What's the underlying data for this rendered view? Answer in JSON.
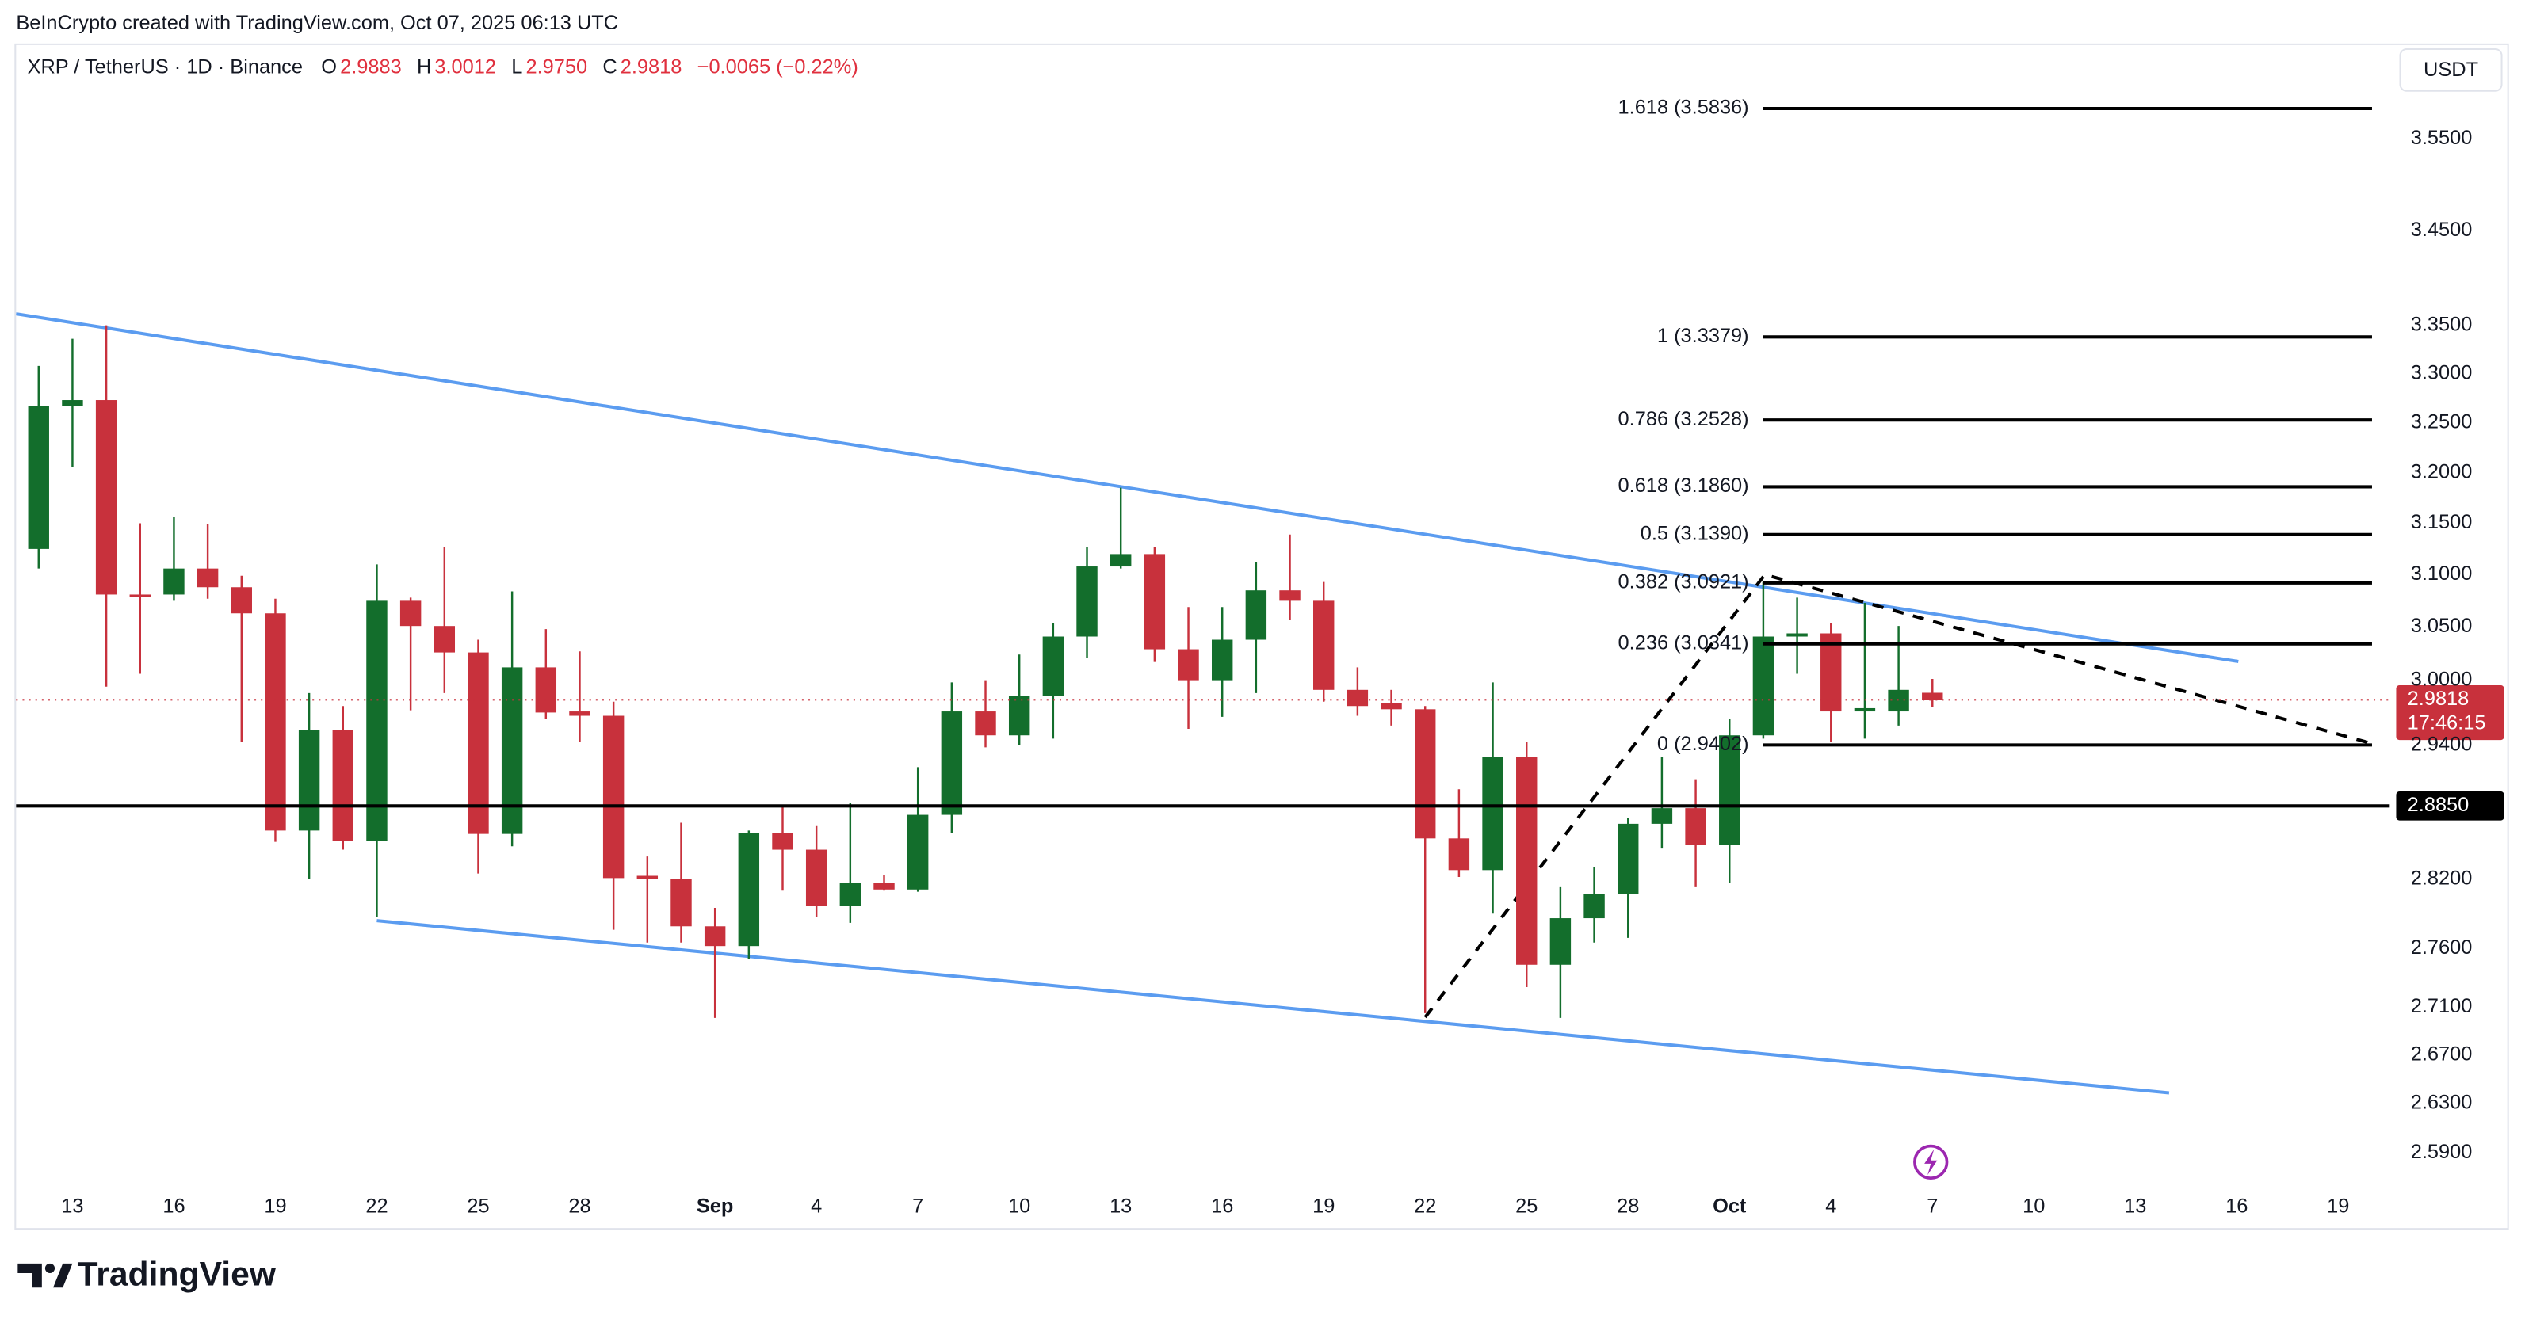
{
  "header": {
    "attribution": "BeInCrypto created with TradingView.com, Oct 07, 2025 06:13 UTC",
    "currency": "USDT",
    "logo": "TradingView"
  },
  "chart_data": {
    "type": "candlestick",
    "title": "XRP / TetherUS · 1D · Binance",
    "ohlc_legend": [
      {
        "label": "O",
        "value": "2.9883"
      },
      {
        "label": "H",
        "value": "3.0012"
      },
      {
        "label": "L",
        "value": "2.9750"
      },
      {
        "label": "C",
        "value": "2.9818"
      }
    ],
    "change": "−0.0065 (−0.22%)",
    "categories": [
      null,
      "13",
      null,
      null,
      "16",
      null,
      null,
      "19",
      null,
      null,
      "22",
      null,
      null,
      "25",
      null,
      null,
      "28",
      null,
      null,
      null,
      "Sep",
      null,
      null,
      "4",
      null,
      null,
      "7",
      null,
      null,
      "10",
      null,
      null,
      "13",
      null,
      null,
      "16",
      null,
      null,
      "19",
      null,
      null,
      "22",
      null,
      null,
      "25",
      null,
      null,
      "28",
      null,
      null,
      "Oct",
      null,
      null,
      "4",
      null,
      null,
      "7",
      null,
      null,
      "10",
      null,
      null,
      "13",
      null,
      null,
      "16",
      null,
      null,
      "19",
      null
    ],
    "open": [
      3.125,
      3.267,
      3.273,
      3.081,
      3.081,
      3.106,
      3.088,
      3.063,
      2.863,
      2.954,
      2.854,
      3.075,
      3.051,
      3.026,
      2.86,
      3.012,
      2.971,
      2.967,
      2.823,
      2.82,
      2.779,
      2.762,
      2.861,
      2.846,
      2.797,
      2.817,
      2.811,
      2.877,
      2.971,
      2.949,
      2.985,
      3.041,
      3.108,
      3.12,
      3.029,
      3.0,
      3.038,
      3.085,
      3.075,
      2.991,
      2.979,
      2.973,
      2.856,
      2.828,
      2.929,
      2.746,
      2.786,
      2.807,
      2.869,
      2.883,
      2.85,
      2.949,
      3.041,
      3.044,
      2.971,
      2.971,
      2.9883,
      null,
      null,
      null,
      null,
      null,
      null,
      null,
      null,
      null,
      null,
      null,
      null,
      null
    ],
    "high": [
      3.308,
      3.336,
      3.35,
      3.15,
      3.156,
      3.149,
      3.099,
      3.077,
      2.988,
      2.976,
      3.11,
      3.078,
      3.127,
      3.038,
      3.084,
      3.048,
      3.027,
      2.98,
      2.84,
      2.87,
      2.795,
      2.863,
      2.885,
      2.867,
      2.888,
      2.824,
      2.92,
      2.998,
      3.0,
      3.024,
      3.054,
      3.127,
      3.185,
      3.127,
      3.069,
      3.069,
      3.112,
      3.139,
      3.093,
      3.012,
      2.991,
      2.976,
      2.9,
      2.998,
      2.943,
      2.813,
      2.831,
      2.874,
      2.929,
      2.909,
      2.964,
      3.093,
      3.078,
      3.054,
      3.073,
      3.051,
      3.0012,
      null,
      null,
      null,
      null,
      null,
      null,
      null,
      null,
      null,
      null,
      null,
      null,
      null
    ],
    "low": [
      3.106,
      3.206,
      2.994,
      3.006,
      3.075,
      3.077,
      2.943,
      2.853,
      2.82,
      2.846,
      2.787,
      2.972,
      2.988,
      2.825,
      2.849,
      2.964,
      2.943,
      2.776,
      2.765,
      2.765,
      2.701,
      2.751,
      2.81,
      2.787,
      2.782,
      2.81,
      2.809,
      2.861,
      2.938,
      2.94,
      2.946,
      3.021,
      3.106,
      3.017,
      2.955,
      2.966,
      2.988,
      3.057,
      2.98,
      2.967,
      2.958,
      2.705,
      2.822,
      2.79,
      2.727,
      2.701,
      2.765,
      2.769,
      2.847,
      2.813,
      2.817,
      2.946,
      3.006,
      2.943,
      2.946,
      2.958,
      2.975,
      null,
      null,
      null,
      null,
      null,
      null,
      null,
      null,
      null,
      null,
      null,
      null,
      null
    ],
    "close": [
      3.267,
      3.273,
      3.081,
      3.079,
      3.106,
      3.088,
      3.063,
      2.863,
      2.954,
      2.854,
      3.075,
      3.051,
      3.026,
      2.86,
      3.012,
      2.97,
      2.967,
      2.821,
      2.82,
      2.779,
      2.762,
      2.861,
      2.846,
      2.797,
      2.817,
      2.811,
      2.877,
      2.971,
      2.949,
      2.985,
      3.041,
      3.108,
      3.12,
      3.029,
      3.0,
      3.038,
      3.085,
      3.075,
      2.991,
      2.976,
      2.973,
      2.856,
      2.828,
      2.929,
      2.746,
      2.786,
      2.807,
      2.869,
      2.883,
      2.85,
      2.949,
      3.041,
      3.044,
      2.971,
      2.974,
      2.991,
      2.9818,
      null,
      null,
      null,
      null,
      null,
      null,
      null,
      null,
      null,
      null,
      null,
      null,
      null
    ],
    "up_color": "#136e2c",
    "down_color": "#c8313c",
    "ylim": [
      2.562,
      3.655
    ],
    "log_scale": true,
    "yticks": [
      {
        "value": 3.55,
        "label": "3.5500"
      },
      {
        "value": 3.45,
        "label": "3.4500"
      },
      {
        "value": 3.35,
        "label": "3.3500"
      },
      {
        "value": 3.3,
        "label": "3.3000"
      },
      {
        "value": 3.25,
        "label": "3.2500"
      },
      {
        "value": 3.2,
        "label": "3.2000"
      },
      {
        "value": 3.15,
        "label": "3.1500"
      },
      {
        "value": 3.1,
        "label": "3.1000"
      },
      {
        "value": 3.05,
        "label": "3.0500"
      },
      {
        "value": 3.0,
        "label": "3.0000"
      },
      {
        "value": 2.94,
        "label": "2.9400"
      },
      {
        "value": 2.82,
        "label": "2.8200"
      },
      {
        "value": 2.76,
        "label": "2.7600"
      },
      {
        "value": 2.71,
        "label": "2.7100"
      },
      {
        "value": 2.67,
        "label": "2.6700"
      },
      {
        "value": 2.63,
        "label": "2.6300"
      },
      {
        "value": 2.59,
        "label": "2.5900"
      }
    ],
    "fib_levels": [
      {
        "label": "1.618 (3.5836)",
        "value": 3.5836
      },
      {
        "label": "1 (3.3379)",
        "value": 3.3379
      },
      {
        "label": "0.786 (3.2528)",
        "value": 3.2528
      },
      {
        "label": "0.618 (3.1860)",
        "value": 3.186
      },
      {
        "label": "0.5 (3.1390)",
        "value": 3.139
      },
      {
        "label": "0.382 (3.0921)",
        "value": 3.0921
      },
      {
        "label": "0.236 (3.0341)",
        "value": 3.0341
      },
      {
        "label": "0 (2.9402)",
        "value": 2.9402
      }
    ],
    "horizontal_line": {
      "value": 2.885,
      "label": "2.8850"
    },
    "last_price": {
      "value": 2.9818,
      "label": "2.9818",
      "countdown": "17:46:15"
    }
  }
}
